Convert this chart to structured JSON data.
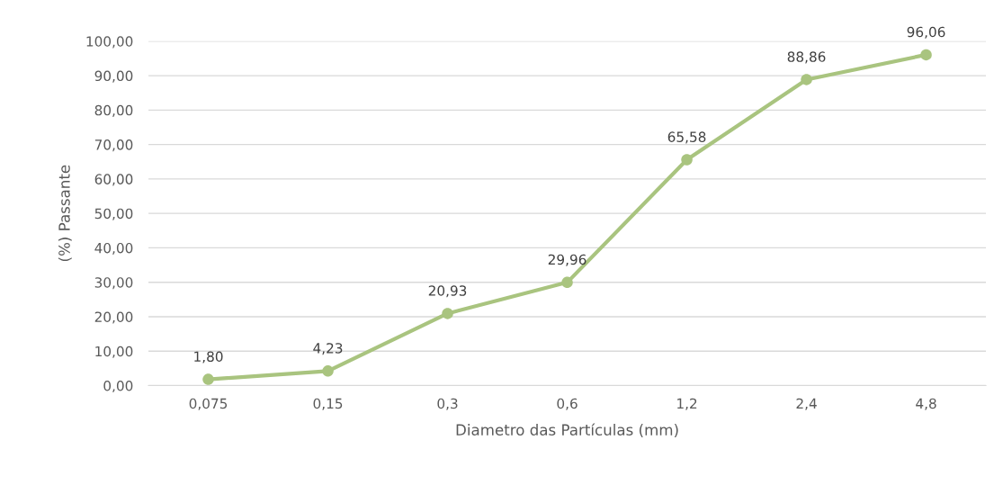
{
  "chart_data": {
    "type": "line",
    "xlabel": "Diametro das Partículas (mm)",
    "ylabel": "(%) Passante",
    "categories": [
      "0,075",
      "0,15",
      "0,3",
      "0,6",
      "1,2",
      "2,4",
      "4,8"
    ],
    "series": [
      {
        "color": "#a9c47f",
        "values": [
          1.8,
          4.23,
          20.93,
          29.96,
          65.58,
          88.86,
          96.06
        ],
        "value_labels": [
          "1,80",
          "4,23",
          "20,93",
          "29,96",
          "65,58",
          "88,86",
          "96,06"
        ]
      }
    ],
    "ylim": [
      0,
      100
    ],
    "yticks": [
      {
        "value": 0,
        "label": "0,00"
      },
      {
        "value": 10,
        "label": "10,00"
      },
      {
        "value": 20,
        "label": "20,00"
      },
      {
        "value": 30,
        "label": "30,00"
      },
      {
        "value": 40,
        "label": "40,00"
      },
      {
        "value": 50,
        "label": "50,00"
      },
      {
        "value": 60,
        "label": "60,00"
      },
      {
        "value": 70,
        "label": "70,00"
      },
      {
        "value": 80,
        "label": "80,00"
      },
      {
        "value": 90,
        "label": "90,00"
      },
      {
        "value": 100,
        "label": "100,00"
      }
    ],
    "grid": "y",
    "marker": "circle",
    "line_style": "solid"
  }
}
